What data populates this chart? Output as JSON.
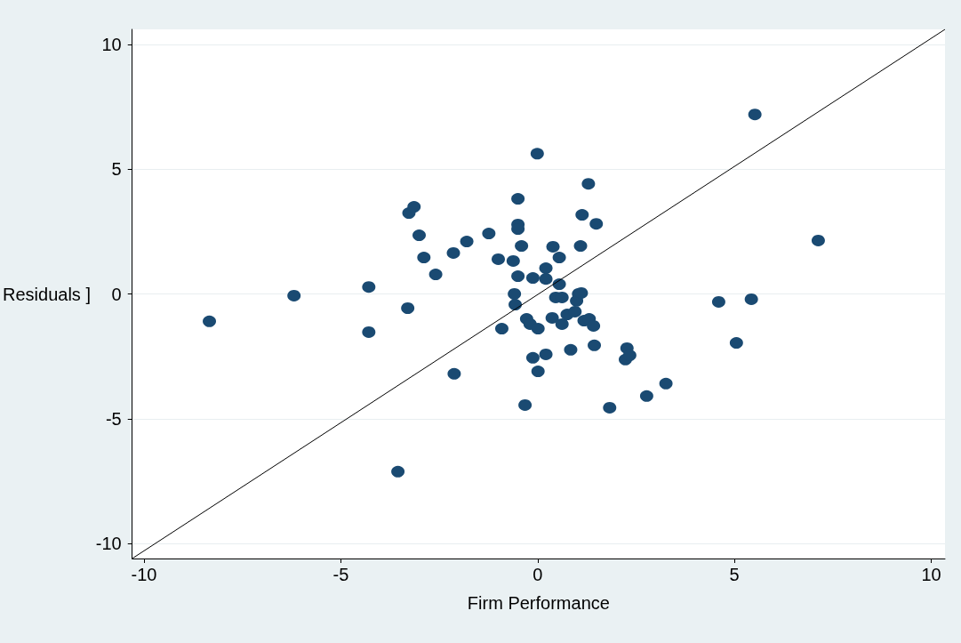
{
  "chart_data": {
    "type": "scatter",
    "xlabel": "Firm Performance",
    "ylabel": "Residuals ]",
    "xlim": [
      -10.3,
      10.35
    ],
    "ylim": [
      -10.6,
      10.6
    ],
    "xticks": [
      -10,
      -5,
      0,
      5,
      10
    ],
    "yticks": [
      -10,
      -5,
      0,
      5,
      10
    ],
    "grid": "y",
    "marker": "circle",
    "series": [
      {
        "color": "#1a4a72",
        "x": [
          -8.34,
          -6.19,
          -4.29,
          -4.29,
          -3.3,
          -3.55,
          -3.27,
          -3.14,
          -3.01,
          -2.89,
          -2.59,
          -2.14,
          -1.8,
          -1.24,
          -2.12,
          -1.0,
          -0.91,
          -0.62,
          -0.5,
          -0.5,
          -0.5,
          -0.41,
          -0.5,
          -0.59,
          -0.57,
          -0.32,
          -0.28,
          -0.19,
          -0.12,
          -0.12,
          -0.01,
          0.01,
          0.01,
          0.21,
          0.21,
          0.21,
          0.39,
          0.37,
          0.46,
          0.55,
          0.55,
          0.62,
          0.62,
          0.75,
          0.84,
          0.95,
          0.99,
          1.04,
          1.11,
          1.09,
          1.13,
          1.18,
          1.31,
          1.29,
          1.42,
          1.49,
          1.44,
          1.83,
          2.27,
          2.23,
          2.34,
          2.77,
          3.26,
          4.6,
          5.05,
          5.43,
          5.52,
          7.13
        ],
        "values": [
          -1.1,
          -0.07,
          0.28,
          -1.53,
          -0.57,
          -7.12,
          3.24,
          3.49,
          2.35,
          1.46,
          0.78,
          1.64,
          2.1,
          2.42,
          -3.2,
          1.39,
          -1.39,
          1.32,
          3.81,
          2.78,
          2.6,
          1.92,
          0.71,
          0.0,
          -0.43,
          -4.45,
          -1.0,
          -1.21,
          0.64,
          -2.56,
          5.62,
          -1.39,
          -3.1,
          1.03,
          0.6,
          -2.42,
          1.89,
          -0.96,
          -0.14,
          1.46,
          0.39,
          -0.14,
          -1.21,
          -0.82,
          -2.24,
          -0.71,
          -0.28,
          0.0,
          0.04,
          1.92,
          3.17,
          -1.07,
          -1.0,
          4.41,
          -1.28,
          2.81,
          -2.06,
          -4.56,
          -2.17,
          -2.63,
          -2.46,
          -4.09,
          -3.59,
          -0.32,
          -1.96,
          -0.21,
          7.19,
          2.14
        ]
      },
      {
        "type": "line",
        "color": "#000000",
        "marker": "none",
        "x": [
          -10.3,
          10.35
        ],
        "values": [
          -10.6,
          10.6
        ]
      }
    ]
  }
}
